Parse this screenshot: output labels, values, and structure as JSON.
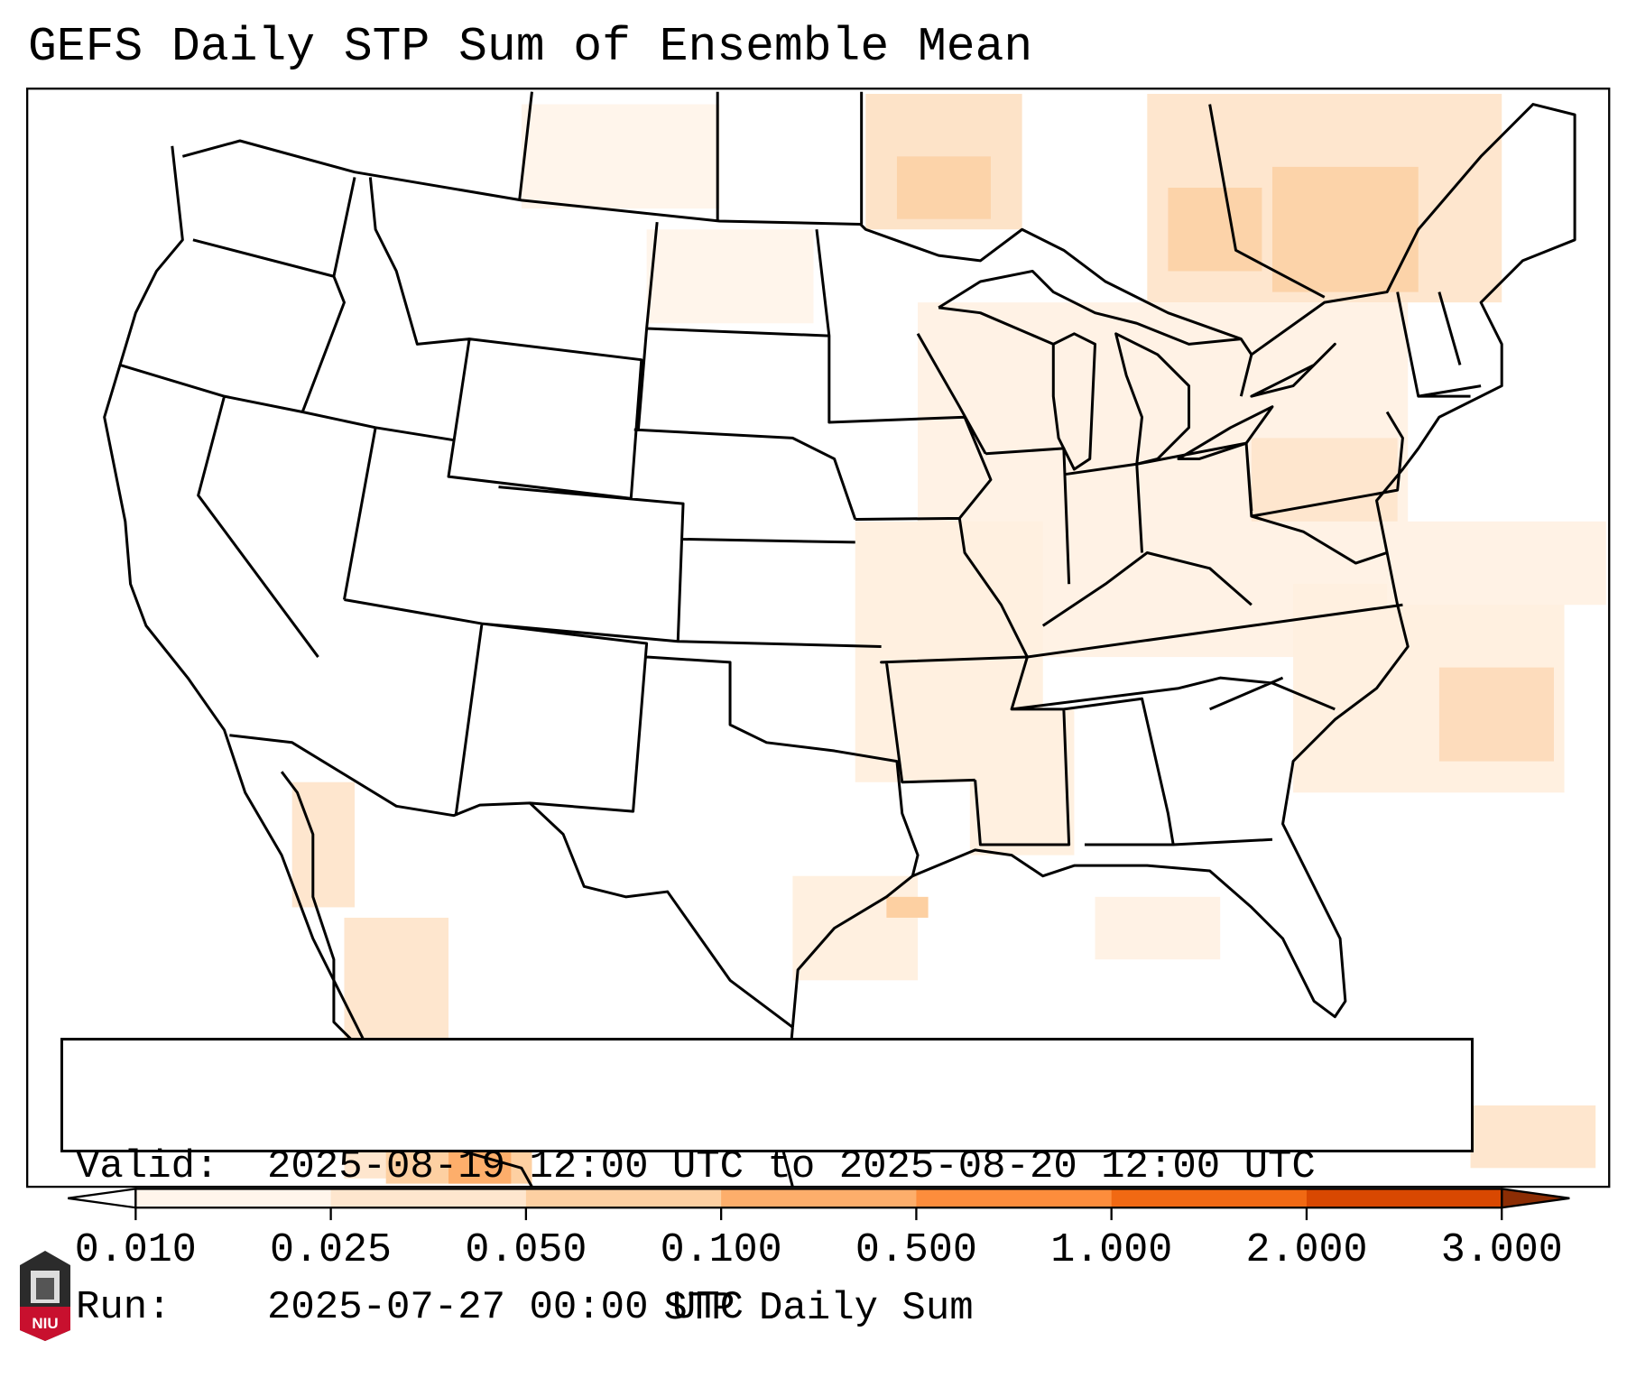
{
  "title": "GEFS Daily STP Sum of Ensemble Mean",
  "info": {
    "valid_label": "Valid:",
    "valid_value": "2025-08-19 12:00 UTC to 2025-08-20 12:00 UTC",
    "run_label": "Run:",
    "run_value": "2025-07-27 00:00 UTC"
  },
  "colorbar": {
    "label": "STP Daily Sum",
    "ticks": [
      "0.010",
      "0.025",
      "0.050",
      "0.100",
      "0.500",
      "1.000",
      "2.000",
      "3.000"
    ],
    "colors": [
      "#fff5eb",
      "#fee6ce",
      "#fdd0a2",
      "#fdae6b",
      "#fd8d3c",
      "#f16913",
      "#d94801"
    ],
    "under_color": "#ffffff",
    "over_color": "#8c2d04"
  },
  "logo": {
    "text": "NIU",
    "color": "#c8102e"
  }
}
